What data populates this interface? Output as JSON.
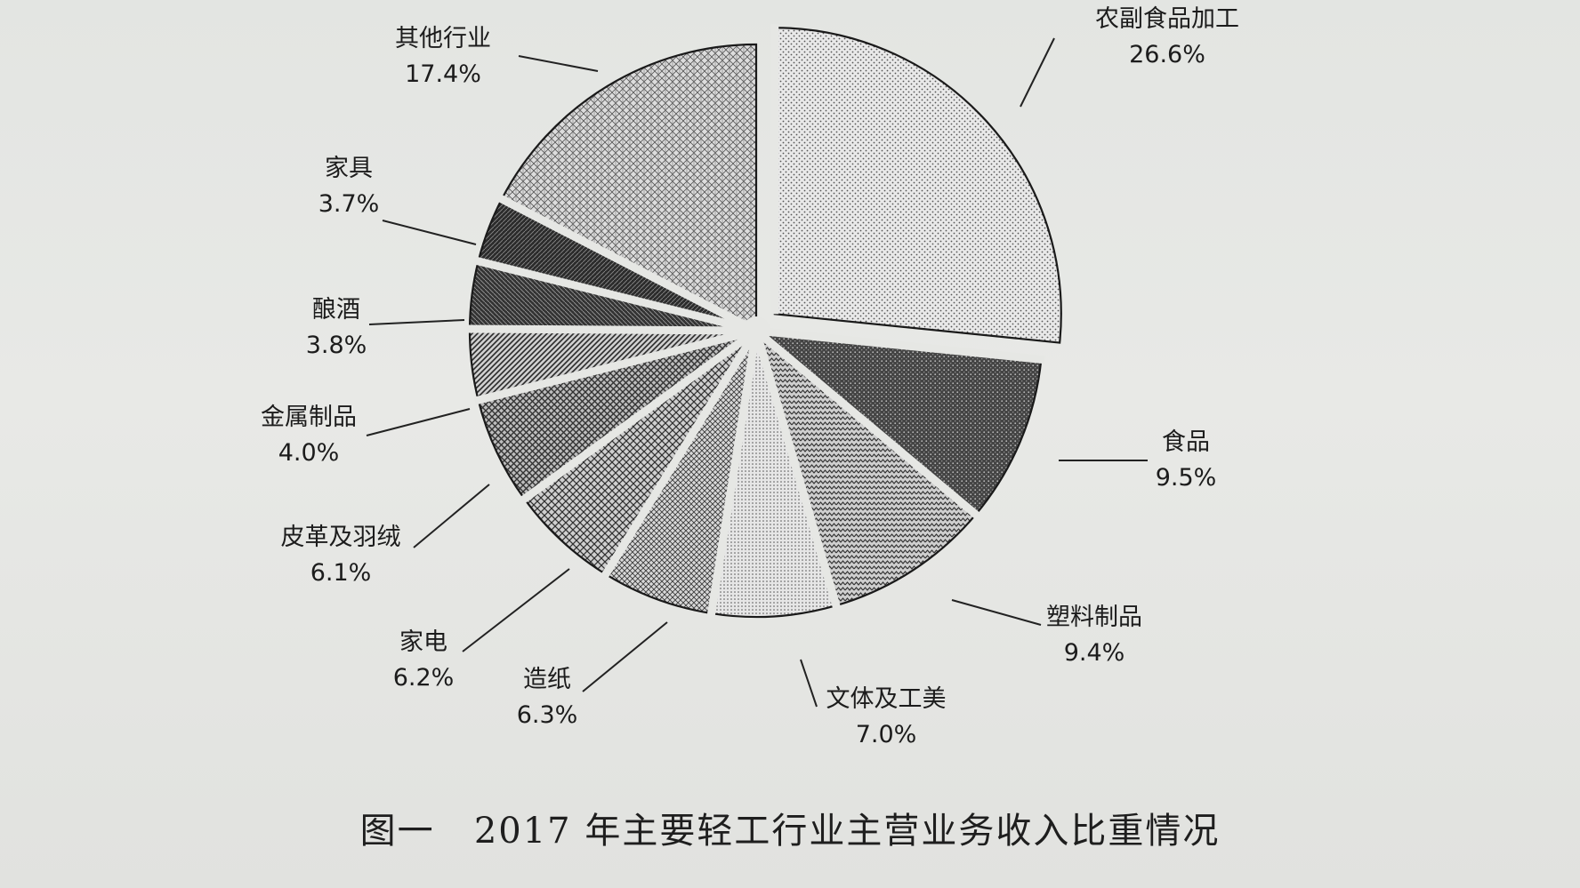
{
  "caption": "图一   2017 年主要轻工行业主营业务收入比重情况",
  "chart_data": {
    "type": "pie",
    "title": "",
    "slices": [
      {
        "label": "农副食品加工",
        "value": 26.6,
        "value_text": "26.6%",
        "fill": "#dcdcdc",
        "pattern": "dots-light",
        "exploded": true
      },
      {
        "label": "食品",
        "value": 9.5,
        "value_text": "9.5%",
        "fill": "#555555",
        "pattern": "dots-dark",
        "exploded": false
      },
      {
        "label": "塑料制品",
        "value": 9.4,
        "value_text": "9.4%",
        "fill": "#9a9a9a",
        "pattern": "zigzag",
        "exploded": false
      },
      {
        "label": "文体及工美",
        "value": 7.0,
        "value_text": "7.0%",
        "fill": "#d6d6d6",
        "pattern": "dots-fine",
        "exploded": false
      },
      {
        "label": "造纸",
        "value": 6.3,
        "value_text": "6.3%",
        "fill": "#a8a8a8",
        "pattern": "crosshatch-fine",
        "exploded": false
      },
      {
        "label": "家电",
        "value": 6.2,
        "value_text": "6.2%",
        "fill": "#9f9f9f",
        "pattern": "crosshatch",
        "exploded": false
      },
      {
        "label": "皮革及羽绒",
        "value": 6.1,
        "value_text": "6.1%",
        "fill": "#8c8c8c",
        "pattern": "grid",
        "exploded": false
      },
      {
        "label": "金属制品",
        "value": 4.0,
        "value_text": "4.0%",
        "fill": "#909090",
        "pattern": "hatch-diag",
        "exploded": false
      },
      {
        "label": "酿酒",
        "value": 3.8,
        "value_text": "3.8%",
        "fill": "#4a4a4a",
        "pattern": "hatch-dark",
        "exploded": false
      },
      {
        "label": "家具",
        "value": 3.7,
        "value_text": "3.7%",
        "fill": "#3f3f3f",
        "pattern": "hatch-dark2",
        "exploded": false
      },
      {
        "label": "其他行业",
        "value": 17.4,
        "value_text": "17.4%",
        "fill": "#b5b5b5",
        "pattern": "weave",
        "exploded": false
      }
    ],
    "start_angle_deg": 0,
    "direction": "clockwise",
    "legend": "none"
  }
}
